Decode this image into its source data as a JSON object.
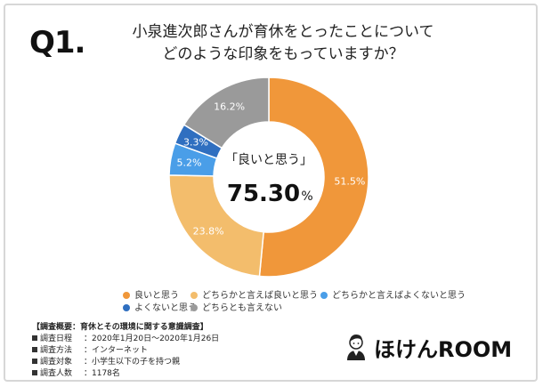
{
  "question": {
    "number": "Q1.",
    "line1": "小泉進次郎さんが育休をとったことについて",
    "line2": "どのような印象をもっていますか？"
  },
  "center": {
    "label": "「良いと思う」",
    "value": "75.30",
    "unit": "%"
  },
  "chart_data": {
    "type": "pie",
    "title": "小泉進次郎さんが育休をとったことについてどのような印象をもっていますか？",
    "donut": true,
    "slices": [
      {
        "label": "良いと思う",
        "value": 51.5,
        "display": "51.5%",
        "color": "#f0973a"
      },
      {
        "label": "どちらかと言えば良いと思う",
        "value": 23.8,
        "display": "23.8%",
        "color": "#f3bd6c"
      },
      {
        "label": "どちらかと言えばよくないと思う",
        "value": 5.2,
        "display": "5.2%",
        "color": "#4a9ee8"
      },
      {
        "label": "よくないと思う",
        "value": 3.3,
        "display": "3.3%",
        "color": "#2f6fc0"
      },
      {
        "label": "どちらとも言えない",
        "value": 16.2,
        "display": "16.2%",
        "color": "#9a9a9a"
      }
    ]
  },
  "legend": [
    {
      "label": "良いと思う",
      "color": "#f0973a"
    },
    {
      "label": "どちらかと言えば良いと思う",
      "color": "#f3bd6c"
    },
    {
      "label": "どちらかと言えばよくないと思う",
      "color": "#4a9ee8"
    },
    {
      "label": "よくないと思う",
      "color": "#2f6fc0"
    },
    {
      "label": "どちらとも言えない",
      "color": "#9a9a9a"
    }
  ],
  "survey": {
    "title": "【調査概要：育休とその環境に関する意識調査】",
    "rows": [
      {
        "key": "調査日程",
        "value": "：2020年1月20日〜2020年1月26日"
      },
      {
        "key": "調査方法",
        "value": "：インターネット"
      },
      {
        "key": "調査対象",
        "value": "：小学生以下の子を持つ親"
      },
      {
        "key": "調査人数",
        "value": "：1178名"
      }
    ]
  },
  "brand": {
    "text1": "ほけん",
    "text2": "ROOM",
    "accent_color": "#e8452c"
  }
}
